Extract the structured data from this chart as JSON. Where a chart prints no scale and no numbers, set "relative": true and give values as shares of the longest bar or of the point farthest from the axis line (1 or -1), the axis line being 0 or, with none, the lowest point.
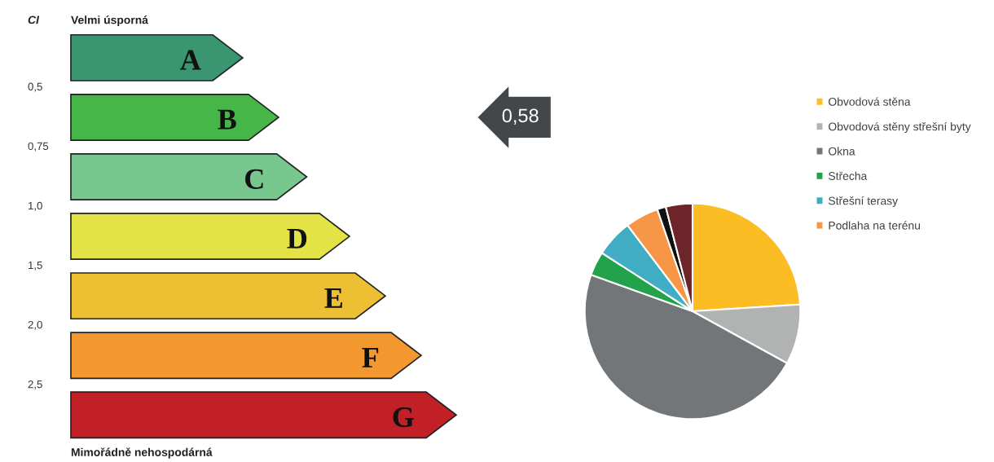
{
  "chart_data": [
    {
      "type": "bar",
      "orientation": "horizontal",
      "relative": true,
      "title": "Velmi úsporná",
      "ylabel": "CI",
      "categories": [
        "A",
        "B",
        "C",
        "D",
        "E",
        "F",
        "G"
      ],
      "values": [
        0.446,
        0.539,
        0.612,
        0.723,
        0.816,
        0.909,
        1
      ],
      "colors": [
        "#3a9670",
        "#46b649",
        "#78c78e",
        "#e3e348",
        "#edc033",
        "#f3982e",
        "#c12026"
      ],
      "annotations": [
        "Mimořádně nehospodárná",
        "0,5",
        "0,75",
        "1,0",
        "1,5",
        "2,0",
        "2,5",
        "0,58"
      ]
    },
    {
      "type": "pie",
      "legend": "right",
      "categories": [
        "Obvodová stěna",
        "Obvodová stěny střešní byty",
        "Okna",
        "Střecha",
        "Střešní terasy",
        "Podlaha na terénu",
        null,
        null
      ],
      "values": [
        24,
        9,
        47.5,
        3.6,
        5.6,
        5,
        1.3,
        4
      ],
      "colors": [
        "#fbbc24",
        "#b1b3b3",
        "#737678",
        "#22a24a",
        "#41adc5",
        "#f79646",
        "#111111",
        "#6e2529"
      ]
    }
  ]
}
